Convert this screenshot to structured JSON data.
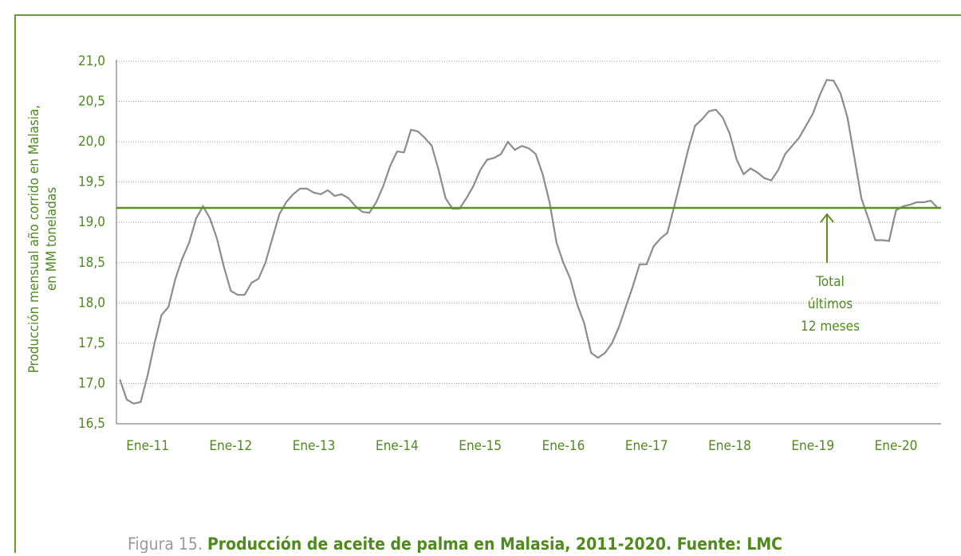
{
  "chart_data": {
    "type": "line",
    "ylabel": [
      "Producción mensual año corrido en Malasia,",
      "en MM toneladas"
    ],
    "caption": [
      "Figura 15.",
      "Producción de aceite de palma en Malasia, 2011-2020. Fuente: LMC"
    ],
    "categories": [
      null,
      null,
      null,
      null,
      "Ene-11",
      null,
      null,
      null,
      null,
      null,
      null,
      null,
      null,
      null,
      null,
      null,
      "Ene-12",
      null,
      null,
      null,
      null,
      null,
      null,
      null,
      null,
      null,
      null,
      null,
      "Ene-13",
      null,
      null,
      null,
      null,
      null,
      null,
      null,
      null,
      null,
      null,
      null,
      "Ene-14",
      null,
      null,
      null,
      null,
      null,
      null,
      null,
      null,
      null,
      null,
      null,
      "Ene-15",
      null,
      null,
      null,
      null,
      null,
      null,
      null,
      null,
      null,
      null,
      null,
      "Ene-16",
      null,
      null,
      null,
      null,
      null,
      null,
      null,
      null,
      null,
      null,
      null,
      "Ene-17",
      null,
      null,
      null,
      null,
      null,
      null,
      null,
      null,
      null,
      null,
      null,
      "Ene-18",
      null,
      null,
      null,
      null,
      null,
      null,
      null,
      null,
      null,
      null,
      null,
      "Ene-19",
      null,
      null,
      null,
      null,
      null,
      null,
      null,
      null,
      null,
      null,
      null,
      "Ene-20",
      null,
      null,
      null,
      null,
      null,
      null
    ],
    "series": [
      {
        "color": "#8c8c8c",
        "values": [
          17.05,
          16.8,
          16.75,
          16.77,
          17.1,
          17.5,
          17.85,
          17.95,
          18.3,
          18.55,
          18.75,
          19.05,
          19.2,
          19.05,
          18.8,
          18.45,
          18.15,
          18.1,
          18.1,
          18.25,
          18.3,
          18.5,
          18.8,
          19.1,
          19.25,
          19.35,
          19.42,
          19.42,
          19.37,
          19.35,
          19.4,
          19.33,
          19.35,
          19.3,
          19.2,
          19.13,
          19.12,
          19.25,
          19.45,
          19.7,
          19.88,
          19.87,
          20.15,
          20.13,
          20.05,
          19.95,
          19.65,
          19.3,
          19.17,
          19.17,
          19.3,
          19.45,
          19.65,
          19.78,
          19.8,
          19.85,
          20.0,
          19.9,
          19.95,
          19.92,
          19.85,
          19.6,
          19.25,
          18.75,
          18.5,
          18.3,
          17.98,
          17.75,
          17.38,
          17.32,
          17.38,
          17.5,
          17.7,
          17.95,
          18.2,
          18.48,
          18.48,
          18.7,
          18.8,
          18.87,
          19.2,
          19.55,
          19.9,
          20.2,
          20.28,
          20.38,
          20.4,
          20.3,
          20.1,
          19.78,
          19.6,
          19.67,
          19.62,
          19.55,
          19.52,
          19.65,
          19.85,
          19.95,
          20.05,
          20.2,
          20.35,
          20.58,
          20.77,
          20.76,
          20.6,
          20.3,
          19.8,
          19.3,
          19.05,
          18.78,
          18.78,
          18.77,
          19.15,
          19.2,
          19.22,
          19.25,
          19.25,
          19.27,
          19.18
        ]
      }
    ],
    "reference_line": {
      "value": 19.18,
      "color": "#5e8f22"
    },
    "annotation": [
      "Total",
      "últimos",
      "12 meses"
    ],
    "ylim": [
      16.5,
      21.0
    ],
    "yticks": [
      {
        "value": 16.5,
        "label": "16,5"
      },
      {
        "value": 17.0,
        "label": "17,0"
      },
      {
        "value": 17.5,
        "label": "17,5"
      },
      {
        "value": 18.0,
        "label": "18,0"
      },
      {
        "value": 18.5,
        "label": "18,5"
      },
      {
        "value": 19.0,
        "label": "19,0"
      },
      {
        "value": 19.5,
        "label": "19,5"
      },
      {
        "value": 20.0,
        "label": "20,0"
      },
      {
        "value": 20.5,
        "label": "20,5"
      },
      {
        "value": 21.0,
        "label": "21,0"
      }
    ],
    "grid": true
  }
}
